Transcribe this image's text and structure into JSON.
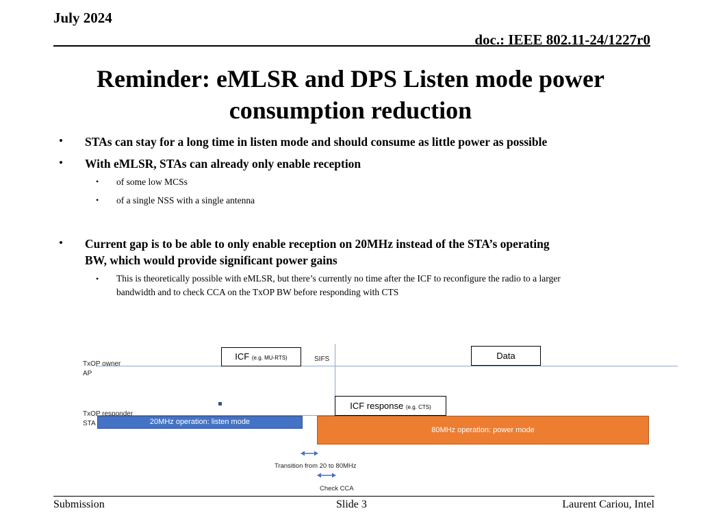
{
  "header": {
    "date": "July 2024",
    "doc": "doc.: IEEE 802.11-24/1227r0"
  },
  "title": {
    "line1": "Reminder: eMLSR and DPS Listen mode power",
    "line2": "consumption reduction"
  },
  "bullets": {
    "b1": "STAs can stay for a long time in listen mode and should consume as little power as possible",
    "b2": "With eMLSR, STAs can already only enable reception",
    "b2_sub1": "of some low MCSs",
    "b2_sub2": "of a single NSS with a single antenna",
    "b3_line1": "Current gap is to be able to only enable reception on 20MHz instead of the STA’s operating",
    "b3_line2": "BW, which would provide significant power gains",
    "b3_sub1_line1": "This is theoretically possible with eMLSR, but there’s currently no time after the ICF to reconfigure the radio to a larger",
    "b3_sub1_line2": "bandwidth and to check CCA on the TxOP BW before responding with CTS",
    "bullet_char": "•"
  },
  "diagram": {
    "txop_owner_line1": "TxOP owner",
    "txop_owner_line2": "AP",
    "txop_responder_line1": "TxOP responder",
    "txop_responder_line2": "STA",
    "icf_label": "ICF",
    "icf_small": "(e.g. MU-RTS)",
    "sifs_label": "SIFS",
    "data_label": "Data",
    "icf_response_label": "ICF response",
    "icf_response_small": "(e.g. CTS)",
    "listen_mode_label": "20MHz operation: listen mode",
    "power_mode_label": "80MHz operation: power mode",
    "transition_label": "Transition from 20 to 80MHz",
    "check_cca_label": "Check CCA",
    "colors": {
      "listen_bar": "#4472c4",
      "power_bar": "#ed7d31",
      "timeline": "#8fa6c4"
    }
  },
  "footer": {
    "left": "Submission",
    "center": "Slide 3",
    "right": "Laurent Cariou, Intel"
  }
}
